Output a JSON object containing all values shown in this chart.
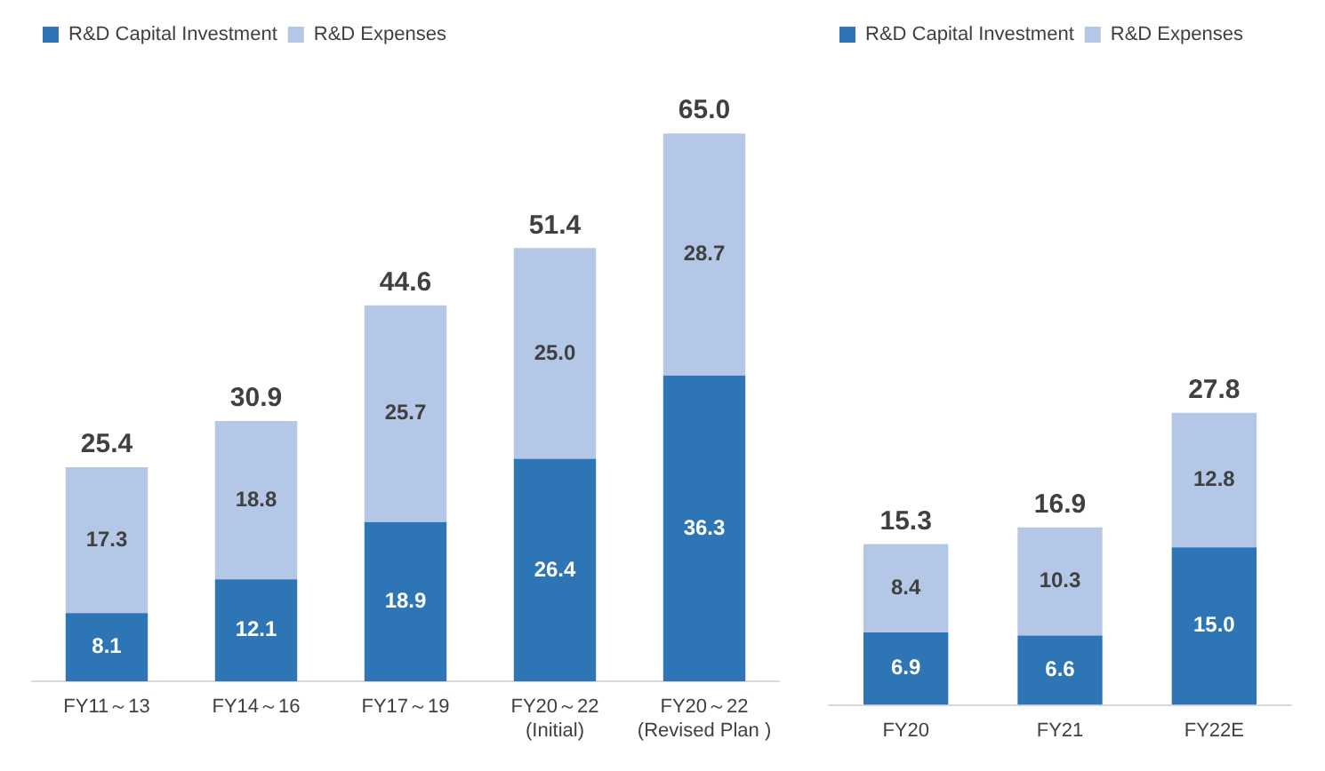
{
  "chart_data": [
    {
      "type": "bar",
      "stacked": true,
      "categories": [
        "FY11～13",
        "FY14～16",
        "FY17～19",
        "FY20～22\n(Initial)",
        "FY20～22\n(Revised Plan )"
      ],
      "series": [
        {
          "name": "R&D Capital Investment",
          "color": "#2e75b6",
          "values": [
            8.1,
            12.1,
            18.9,
            26.4,
            36.3
          ],
          "value_labels": [
            "8.1",
            "12.1",
            "18.9",
            "26.4",
            "36.3"
          ]
        },
        {
          "name": "R&D Expenses",
          "color": "#b4c7e7",
          "values": [
            17.3,
            18.8,
            25.7,
            25.0,
            28.7
          ],
          "value_labels": [
            "17.3",
            "18.8",
            "25.7",
            "25.0",
            "28.7"
          ]
        }
      ],
      "totals": [
        "25.4",
        "30.9",
        "44.6",
        "51.4",
        "65.0"
      ],
      "legend": "top left",
      "grid": false,
      "tick_labels": "x"
    },
    {
      "type": "bar",
      "stacked": true,
      "categories": [
        "FY20",
        "FY21",
        "FY22E"
      ],
      "series": [
        {
          "name": "R&D Capital Investment",
          "color": "#2e75b6",
          "values": [
            6.9,
            6.6,
            15.0
          ],
          "value_labels": [
            "6.9",
            "6.6",
            "15.0"
          ]
        },
        {
          "name": "R&D Expenses",
          "color": "#b4c7e7",
          "values": [
            8.4,
            10.3,
            12.8
          ],
          "value_labels": [
            "8.4",
            "10.3",
            "12.8"
          ]
        }
      ],
      "totals": [
        "15.3",
        "16.9",
        "27.8"
      ],
      "legend": "top left",
      "grid": false,
      "tick_labels": "x"
    }
  ]
}
